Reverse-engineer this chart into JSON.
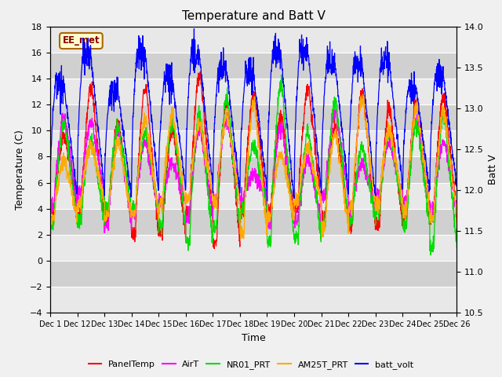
{
  "title": "Temperature and Batt V",
  "xlabel": "Time",
  "ylabel_left": "Temperature (C)",
  "ylabel_right": "Batt V",
  "ylim_left": [
    -4,
    18
  ],
  "ylim_right": [
    10.5,
    14.0
  ],
  "yticks_left": [
    -4,
    -2,
    0,
    2,
    4,
    6,
    8,
    10,
    12,
    14,
    16,
    18
  ],
  "yticks_right": [
    10.5,
    11.0,
    11.5,
    12.0,
    12.5,
    13.0,
    13.5,
    14.0
  ],
  "xtick_labels": [
    "Dec 1",
    "Dec 12",
    "Dec 13",
    "Dec 14",
    "Dec 15",
    "Dec 16",
    "Dec 17",
    "Dec 18",
    "Dec 19",
    "Dec 20",
    "Dec 21",
    "Dec 22",
    "Dec 23",
    "Dec 24",
    "Dec 25",
    "Dec 26"
  ],
  "colors": {
    "PanelTemp": "#ff0000",
    "AirT": "#ff00ff",
    "NR01_PRT": "#00dd00",
    "AM25T_PRT": "#ffaa00",
    "batt_volt": "#0000ff"
  },
  "legend_labels": [
    "PanelTemp",
    "AirT",
    "NR01_PRT",
    "AM25T_PRT",
    "batt_volt"
  ],
  "annotation_text": "EE_met",
  "title_fontsize": 11,
  "label_fontsize": 9,
  "tick_fontsize": 8,
  "fig_bg": "#f0f0f0",
  "ax_bg": "#d8d8d8",
  "grid_color": "#ffffff",
  "stripe_light": "#e8e8e8",
  "stripe_dark": "#d0d0d0"
}
